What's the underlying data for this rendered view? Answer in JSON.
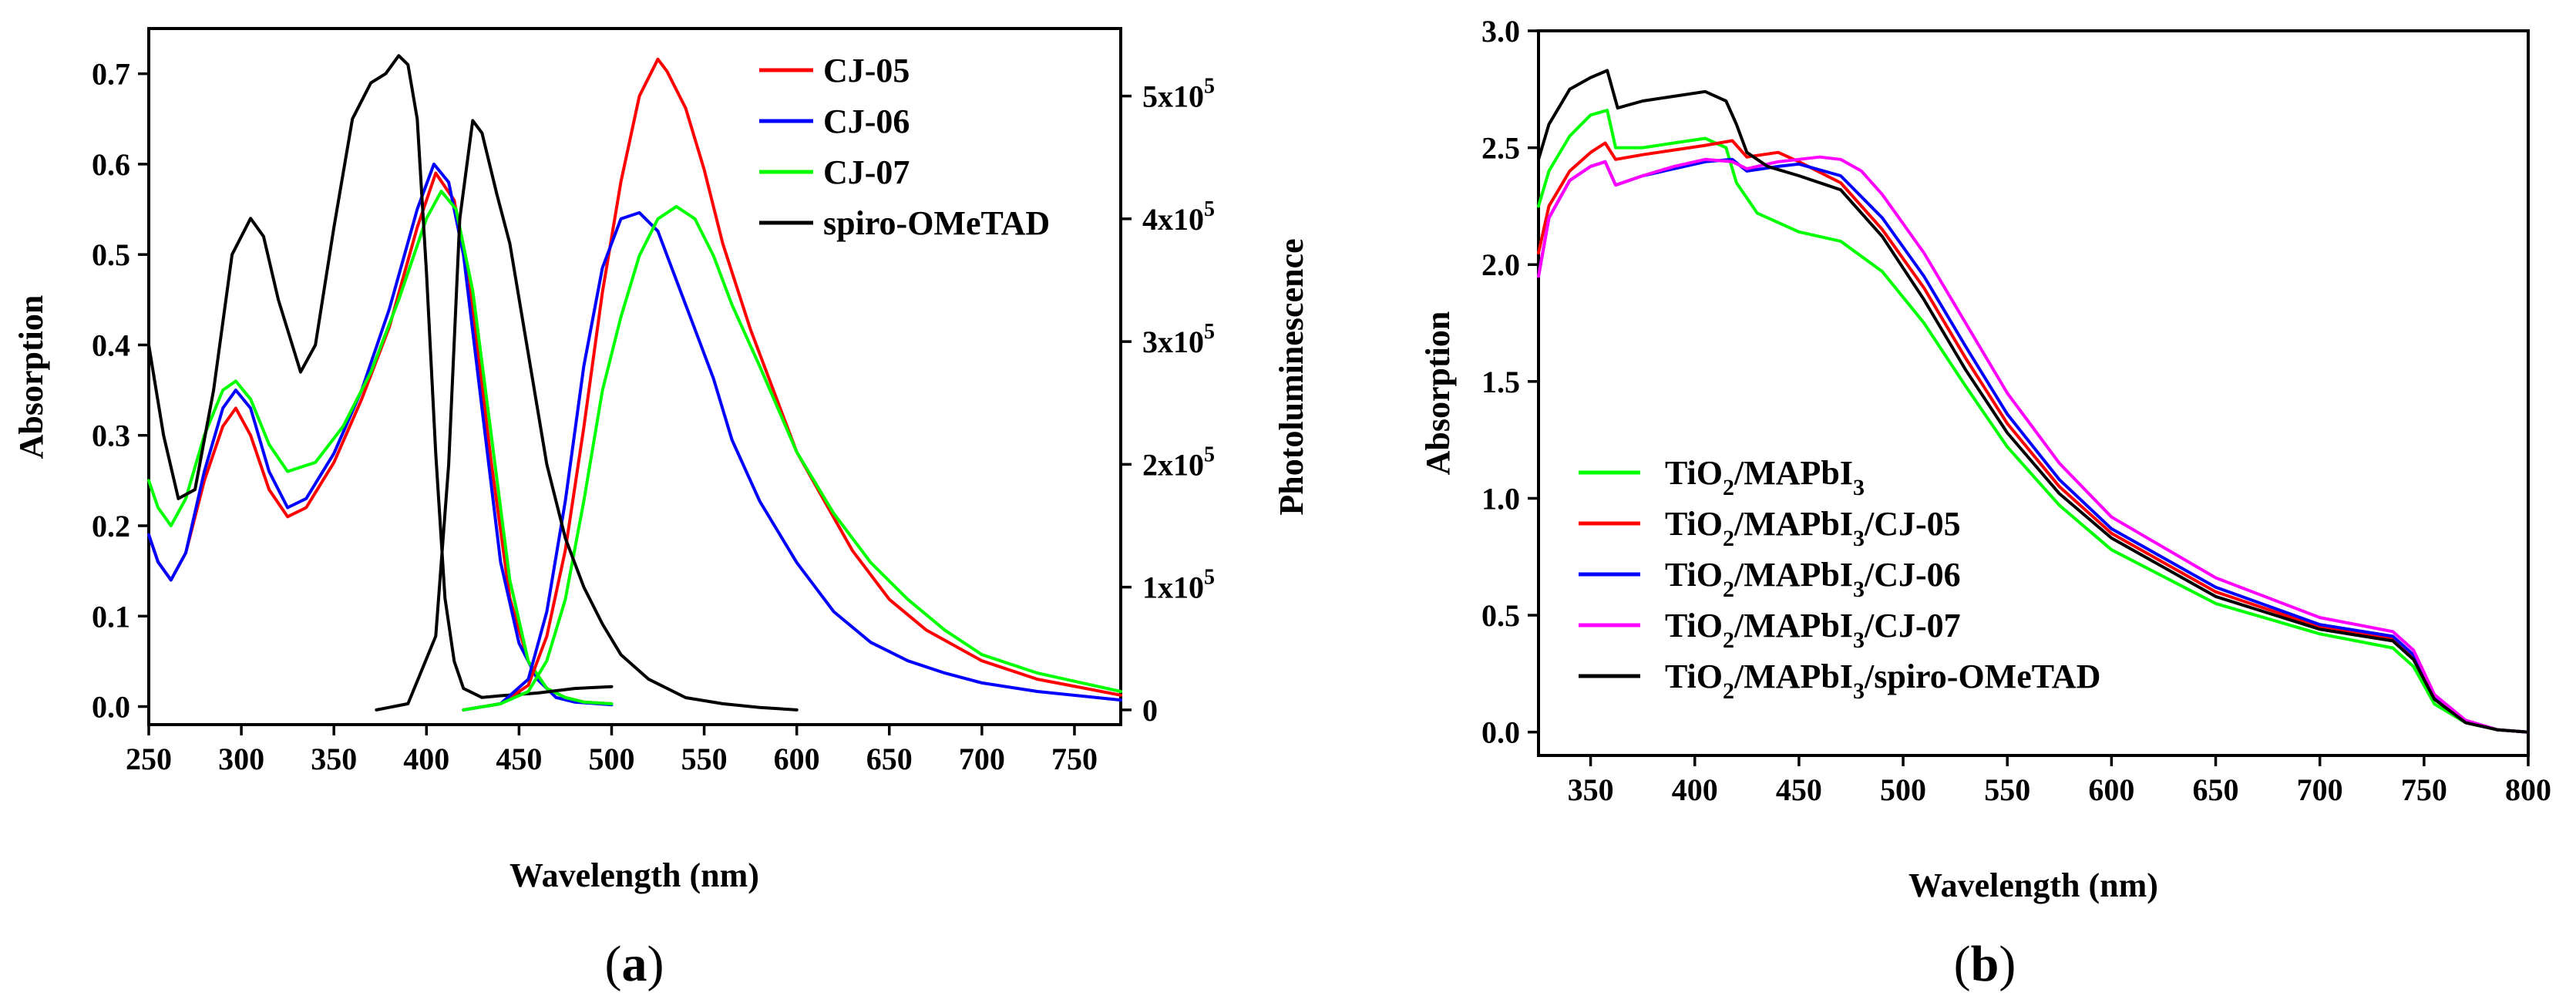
{
  "panels": [
    {
      "panel_label": "(a)",
      "panel_letter": "a",
      "legend": [
        {
          "name": "CJ-05",
          "color": "#ff0000"
        },
        {
          "name": "CJ-06",
          "color": "#0000ff"
        },
        {
          "name": "CJ-07",
          "color": "#00ff00"
        },
        {
          "name": "spiro-OMeTAD",
          "color": "#000000"
        }
      ]
    },
    {
      "panel_label": "(b)",
      "panel_letter": "b",
      "legend": [
        {
          "name": "TiO2/MAPbI3",
          "parts": [
            "TiO",
            "2",
            "/MAPbI",
            "3",
            ""
          ],
          "color": "#00ff00"
        },
        {
          "name": "TiO2/MAPbI3/CJ-05",
          "parts": [
            "TiO",
            "2",
            "/MAPbI",
            "3",
            "/CJ-05"
          ],
          "color": "#ff0000"
        },
        {
          "name": "TiO2/MAPbI3/CJ-06",
          "parts": [
            "TiO",
            "2",
            "/MAPbI",
            "3",
            "/CJ-06"
          ],
          "color": "#0000ff"
        },
        {
          "name": "TiO2/MAPbI3/CJ-07",
          "parts": [
            "TiO",
            "2",
            "/MAPbI",
            "3",
            "/CJ-07"
          ],
          "color": "#ff00ff"
        },
        {
          "name": "TiO2/MAPbI3/spiro-OMeTAD",
          "parts": [
            "TiO",
            "2",
            "/MAPbI",
            "3",
            "/spiro-OMeTAD"
          ],
          "color": "#000000"
        }
      ]
    }
  ],
  "chart_data": [
    {
      "type": "line",
      "title": "",
      "xlabel": "Wavelength (nm)",
      "ylabel": "Absorption",
      "y2label": "Photoluminescence",
      "xlim": [
        250,
        775
      ],
      "ylim": [
        -0.02,
        0.75
      ],
      "y2lim": [
        -12000,
        555000
      ],
      "xticks": [
        250,
        300,
        350,
        400,
        450,
        500,
        550,
        600,
        650,
        700,
        750
      ],
      "yticks": [
        0.0,
        0.1,
        0.2,
        0.3,
        0.4,
        0.5,
        0.6,
        0.7
      ],
      "ytick_labels": [
        "0.0",
        "0.1",
        "0.2",
        "0.3",
        "0.4",
        "0.5",
        "0.6",
        "0.7"
      ],
      "y2ticks": [
        0,
        100000,
        200000,
        300000,
        400000,
        500000
      ],
      "y2tick_labels": [
        {
          "m": "0",
          "e": ""
        },
        {
          "m": "1x10",
          "e": "5"
        },
        {
          "m": "2x10",
          "e": "5"
        },
        {
          "m": "3x10",
          "e": "5"
        },
        {
          "m": "4x10",
          "e": "5"
        },
        {
          "m": "5x10",
          "e": "5"
        }
      ],
      "legend_position": "top-right",
      "series": [
        {
          "name": "CJ-05 absorption",
          "axis": "left",
          "color": "#ff0000",
          "x": [
            250,
            255,
            262,
            270,
            280,
            290,
            297,
            305,
            315,
            325,
            335,
            350,
            365,
            380,
            395,
            405,
            415,
            425,
            435,
            445,
            455,
            465,
            475,
            485,
            500
          ],
          "y": [
            0.19,
            0.16,
            0.14,
            0.17,
            0.25,
            0.31,
            0.33,
            0.3,
            0.24,
            0.21,
            0.22,
            0.27,
            0.34,
            0.42,
            0.53,
            0.59,
            0.56,
            0.44,
            0.27,
            0.12,
            0.05,
            0.02,
            0.01,
            0.005,
            0.003
          ]
        },
        {
          "name": "CJ-06 absorption",
          "axis": "left",
          "color": "#0000ff",
          "x": [
            250,
            255,
            262,
            270,
            280,
            290,
            297,
            305,
            315,
            325,
            335,
            350,
            365,
            380,
            395,
            404,
            412,
            420,
            430,
            440,
            450,
            460,
            470,
            480,
            500
          ],
          "y": [
            0.19,
            0.16,
            0.14,
            0.17,
            0.26,
            0.33,
            0.35,
            0.33,
            0.26,
            0.22,
            0.23,
            0.28,
            0.35,
            0.44,
            0.55,
            0.6,
            0.58,
            0.5,
            0.33,
            0.16,
            0.07,
            0.03,
            0.01,
            0.005,
            0.002
          ]
        },
        {
          "name": "CJ-07 absorption",
          "axis": "left",
          "color": "#00ff00",
          "x": [
            250,
            255,
            262,
            270,
            280,
            290,
            297,
            305,
            315,
            325,
            340,
            355,
            370,
            385,
            400,
            408,
            416,
            425,
            435,
            445,
            455,
            465,
            475,
            485,
            500
          ],
          "y": [
            0.25,
            0.22,
            0.2,
            0.23,
            0.3,
            0.35,
            0.36,
            0.34,
            0.29,
            0.26,
            0.27,
            0.31,
            0.37,
            0.45,
            0.54,
            0.57,
            0.55,
            0.46,
            0.3,
            0.14,
            0.05,
            0.02,
            0.01,
            0.005,
            0.003
          ]
        },
        {
          "name": "spiro-OMeTAD absorption",
          "axis": "left",
          "color": "#000000",
          "x": [
            250,
            258,
            266,
            275,
            285,
            295,
            305,
            312,
            320,
            332,
            340,
            350,
            360,
            370,
            378,
            385,
            390,
            395,
            400,
            405,
            410,
            415,
            420,
            430,
            440,
            460,
            480,
            500
          ],
          "y": [
            0.4,
            0.3,
            0.23,
            0.24,
            0.35,
            0.5,
            0.54,
            0.52,
            0.45,
            0.37,
            0.4,
            0.53,
            0.65,
            0.69,
            0.7,
            0.72,
            0.71,
            0.65,
            0.48,
            0.28,
            0.12,
            0.05,
            0.02,
            0.01,
            0.012,
            0.015,
            0.02,
            0.022
          ]
        },
        {
          "name": "CJ-05 PL",
          "axis": "right",
          "color": "#ff0000",
          "x": [
            420,
            440,
            455,
            465,
            475,
            485,
            495,
            505,
            515,
            525,
            530,
            540,
            550,
            560,
            575,
            590,
            600,
            615,
            630,
            650,
            670,
            700,
            730,
            775
          ],
          "y": [
            0,
            5000,
            20000,
            60000,
            130000,
            230000,
            340000,
            430000,
            500000,
            530000,
            520000,
            490000,
            440000,
            380000,
            310000,
            250000,
            210000,
            170000,
            130000,
            90000,
            65000,
            40000,
            25000,
            12000
          ]
        },
        {
          "name": "CJ-06 PL",
          "axis": "right",
          "color": "#0000ff",
          "x": [
            420,
            440,
            455,
            465,
            475,
            485,
            495,
            505,
            515,
            525,
            535,
            545,
            555,
            565,
            580,
            600,
            620,
            640,
            660,
            680,
            700,
            730,
            775
          ],
          "y": [
            0,
            5000,
            25000,
            80000,
            170000,
            280000,
            360000,
            400000,
            405000,
            390000,
            350000,
            310000,
            270000,
            220000,
            170000,
            120000,
            80000,
            55000,
            40000,
            30000,
            22000,
            15000,
            8000
          ]
        },
        {
          "name": "CJ-07 PL",
          "axis": "right",
          "color": "#00ff00",
          "x": [
            420,
            440,
            455,
            465,
            475,
            485,
            495,
            505,
            515,
            525,
            535,
            545,
            555,
            565,
            580,
            600,
            620,
            640,
            660,
            680,
            700,
            730,
            775
          ],
          "y": [
            0,
            5000,
            15000,
            40000,
            90000,
            170000,
            260000,
            320000,
            370000,
            400000,
            410000,
            400000,
            370000,
            330000,
            280000,
            210000,
            160000,
            120000,
            90000,
            65000,
            45000,
            30000,
            15000
          ]
        },
        {
          "name": "spiro-OMeTAD PL",
          "axis": "right",
          "color": "#000000",
          "x": [
            373,
            390,
            405,
            412,
            418,
            425,
            430,
            438,
            445,
            455,
            465,
            475,
            485,
            495,
            505,
            520,
            540,
            560,
            580,
            600
          ],
          "y": [
            0,
            5000,
            60000,
            200000,
            400000,
            480000,
            470000,
            420000,
            380000,
            290000,
            200000,
            140000,
            100000,
            70000,
            45000,
            25000,
            10000,
            5000,
            2000,
            0
          ]
        }
      ]
    },
    {
      "type": "line",
      "title": "",
      "xlabel": "Wavelength (nm)",
      "ylabel": "Absorption",
      "xlim": [
        325,
        800
      ],
      "ylim": [
        -0.1,
        3.0
      ],
      "xticks": [
        350,
        400,
        450,
        500,
        550,
        600,
        650,
        700,
        750,
        800
      ],
      "yticks": [
        0.0,
        0.5,
        1.0,
        1.5,
        2.0,
        2.5,
        3.0
      ],
      "ytick_labels": [
        "0.0",
        "0.5",
        "1.0",
        "1.5",
        "2.0",
        "2.5",
        "3.0"
      ],
      "legend_position": "bottom-left",
      "series": [
        {
          "name": "TiO2/MAPbI3",
          "color": "#00ff00",
          "x": [
            325,
            330,
            340,
            350,
            358,
            362,
            375,
            390,
            405,
            415,
            420,
            430,
            450,
            470,
            490,
            510,
            530,
            550,
            575,
            600,
            650,
            700,
            735,
            745,
            755,
            770,
            785,
            800
          ],
          "y": [
            2.25,
            2.4,
            2.55,
            2.64,
            2.66,
            2.5,
            2.5,
            2.52,
            2.54,
            2.5,
            2.35,
            2.22,
            2.14,
            2.1,
            1.97,
            1.75,
            1.48,
            1.22,
            0.97,
            0.78,
            0.55,
            0.42,
            0.36,
            0.28,
            0.12,
            0.04,
            0.01,
            0.0
          ]
        },
        {
          "name": "TiO2/MAPbI3/CJ-05",
          "color": "#ff0000",
          "x": [
            325,
            330,
            340,
            350,
            357,
            362,
            375,
            390,
            405,
            418,
            425,
            440,
            450,
            470,
            490,
            510,
            530,
            550,
            575,
            600,
            650,
            700,
            735,
            745,
            755,
            770,
            785,
            800
          ],
          "y": [
            2.05,
            2.25,
            2.4,
            2.48,
            2.52,
            2.45,
            2.47,
            2.49,
            2.51,
            2.53,
            2.46,
            2.48,
            2.44,
            2.35,
            2.15,
            1.9,
            1.6,
            1.32,
            1.05,
            0.85,
            0.6,
            0.45,
            0.4,
            0.32,
            0.15,
            0.05,
            0.01,
            0.0
          ]
        },
        {
          "name": "TiO2/MAPbI3/CJ-06",
          "color": "#0000ff",
          "x": [
            325,
            330,
            340,
            350,
            357,
            362,
            375,
            390,
            405,
            418,
            425,
            440,
            450,
            470,
            490,
            510,
            530,
            550,
            575,
            600,
            650,
            700,
            735,
            745,
            755,
            770,
            785,
            800
          ],
          "y": [
            1.95,
            2.2,
            2.36,
            2.42,
            2.44,
            2.34,
            2.38,
            2.41,
            2.44,
            2.45,
            2.4,
            2.42,
            2.43,
            2.38,
            2.2,
            1.95,
            1.65,
            1.36,
            1.08,
            0.87,
            0.62,
            0.46,
            0.41,
            0.33,
            0.15,
            0.05,
            0.01,
            0.0
          ]
        },
        {
          "name": "TiO2/MAPbI3/CJ-07",
          "color": "#ff00ff",
          "x": [
            325,
            330,
            340,
            350,
            357,
            362,
            375,
            390,
            405,
            418,
            425,
            440,
            460,
            470,
            480,
            490,
            510,
            530,
            550,
            575,
            600,
            650,
            700,
            735,
            745,
            755,
            770,
            785,
            800
          ],
          "y": [
            1.95,
            2.2,
            2.36,
            2.42,
            2.44,
            2.34,
            2.38,
            2.42,
            2.45,
            2.44,
            2.41,
            2.44,
            2.46,
            2.45,
            2.4,
            2.3,
            2.05,
            1.75,
            1.45,
            1.15,
            0.92,
            0.66,
            0.49,
            0.43,
            0.35,
            0.16,
            0.05,
            0.01,
            0.0
          ]
        },
        {
          "name": "TiO2/MAPbI3/spiro-OMeTAD",
          "color": "#000000",
          "x": [
            325,
            330,
            340,
            350,
            358,
            363,
            375,
            390,
            405,
            415,
            420,
            425,
            435,
            450,
            470,
            490,
            510,
            530,
            550,
            575,
            600,
            650,
            700,
            735,
            745,
            755,
            770,
            785,
            800
          ],
          "y": [
            2.45,
            2.6,
            2.75,
            2.8,
            2.83,
            2.67,
            2.7,
            2.72,
            2.74,
            2.7,
            2.6,
            2.48,
            2.42,
            2.38,
            2.32,
            2.12,
            1.85,
            1.55,
            1.28,
            1.02,
            0.83,
            0.58,
            0.44,
            0.39,
            0.31,
            0.14,
            0.04,
            0.01,
            0.0
          ]
        }
      ]
    }
  ]
}
